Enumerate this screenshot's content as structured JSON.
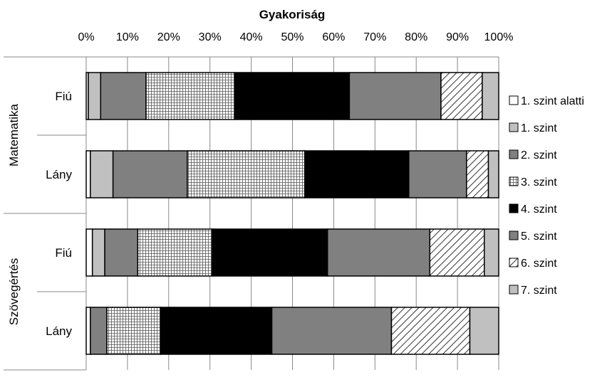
{
  "chart_data": {
    "type": "bar",
    "orientation": "horizontal",
    "stacked": "percent",
    "title": "Gyakoriság",
    "xlim": [
      0,
      100
    ],
    "xticks": [
      "0%",
      "10%",
      "20%",
      "30%",
      "40%",
      "50%",
      "60%",
      "70%",
      "80%",
      "90%",
      "100%"
    ],
    "groups": [
      {
        "label": "Matematika",
        "categories": [
          "Fiú",
          "Lány"
        ]
      },
      {
        "label": "Szövegértés",
        "categories": [
          "Fiú",
          "Lány"
        ]
      }
    ],
    "legend_position": "right",
    "series": [
      {
        "name": "1. szint alatti",
        "fill": "white",
        "values": [
          0.5,
          1.0,
          1.5,
          1.0
        ]
      },
      {
        "name": "1. szint",
        "fill": "lightgray",
        "values": [
          3.0,
          5.5,
          3.0,
          0.0
        ]
      },
      {
        "name": "2. szint",
        "fill": "gray",
        "values": [
          11.0,
          18.0,
          8.0,
          4.0
        ]
      },
      {
        "name": "3. szint",
        "fill": "grid",
        "values": [
          21.5,
          28.5,
          18.0,
          13.0
        ]
      },
      {
        "name": "4. szint",
        "fill": "black",
        "values": [
          27.8,
          25.2,
          28.0,
          27.0
        ]
      },
      {
        "name": "5. szint",
        "fill": "gray",
        "values": [
          22.2,
          14.0,
          24.8,
          29.0
        ]
      },
      {
        "name": "6. szint",
        "fill": "hatch",
        "values": [
          10.0,
          5.3,
          13.2,
          19.0
        ]
      },
      {
        "name": "7. szint",
        "fill": "lightgray",
        "values": [
          4.0,
          2.5,
          3.5,
          7.0
        ]
      }
    ],
    "colors": {
      "white": "#ffffff",
      "lightgray": "#c0c0c0",
      "gray": "#808080",
      "black": "#000000",
      "grid_line": "#888888"
    }
  }
}
